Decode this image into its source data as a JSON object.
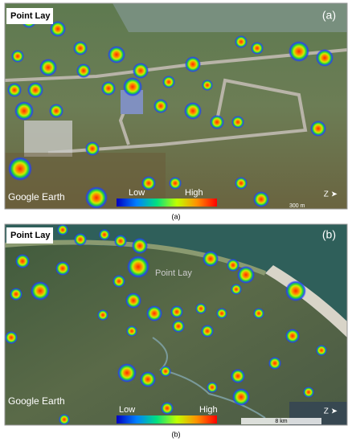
{
  "panels": [
    {
      "place": "Point Lay",
      "label": "(a)",
      "legend": {
        "low": "Low",
        "high": "High"
      },
      "credit": "Google Earth",
      "scale": "300 m",
      "caption": "(a)"
    },
    {
      "place": "Point Lay",
      "label": "(b)",
      "map_label": "Point Lay",
      "legend": {
        "low": "Low",
        "high": "High"
      },
      "credit": "Google Earth",
      "scale": "8 km",
      "caption": "(b)"
    }
  ]
}
